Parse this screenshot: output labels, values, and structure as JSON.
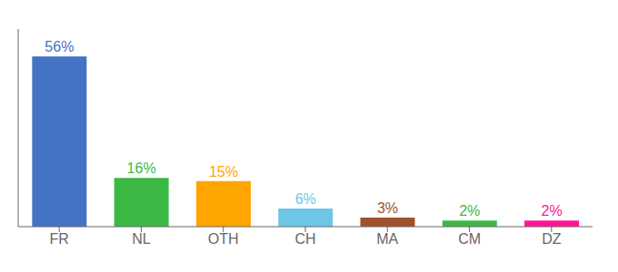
{
  "chart_data": {
    "type": "bar",
    "categories": [
      "FR",
      "NL",
      "OTH",
      "CH",
      "MA",
      "CM",
      "DZ"
    ],
    "values": [
      56,
      16,
      15,
      6,
      3,
      2,
      2
    ],
    "value_labels": [
      "56%",
      "16%",
      "15%",
      "6%",
      "3%",
      "2%",
      "2%"
    ],
    "colors": [
      "#4472C4",
      "#3CB944",
      "#FFA500",
      "#6EC6E6",
      "#A0522D",
      "#3CB944",
      "#FF1493"
    ],
    "ylim": [
      0,
      65
    ],
    "data_labels": true,
    "tick_labels": "x",
    "grid": false
  }
}
